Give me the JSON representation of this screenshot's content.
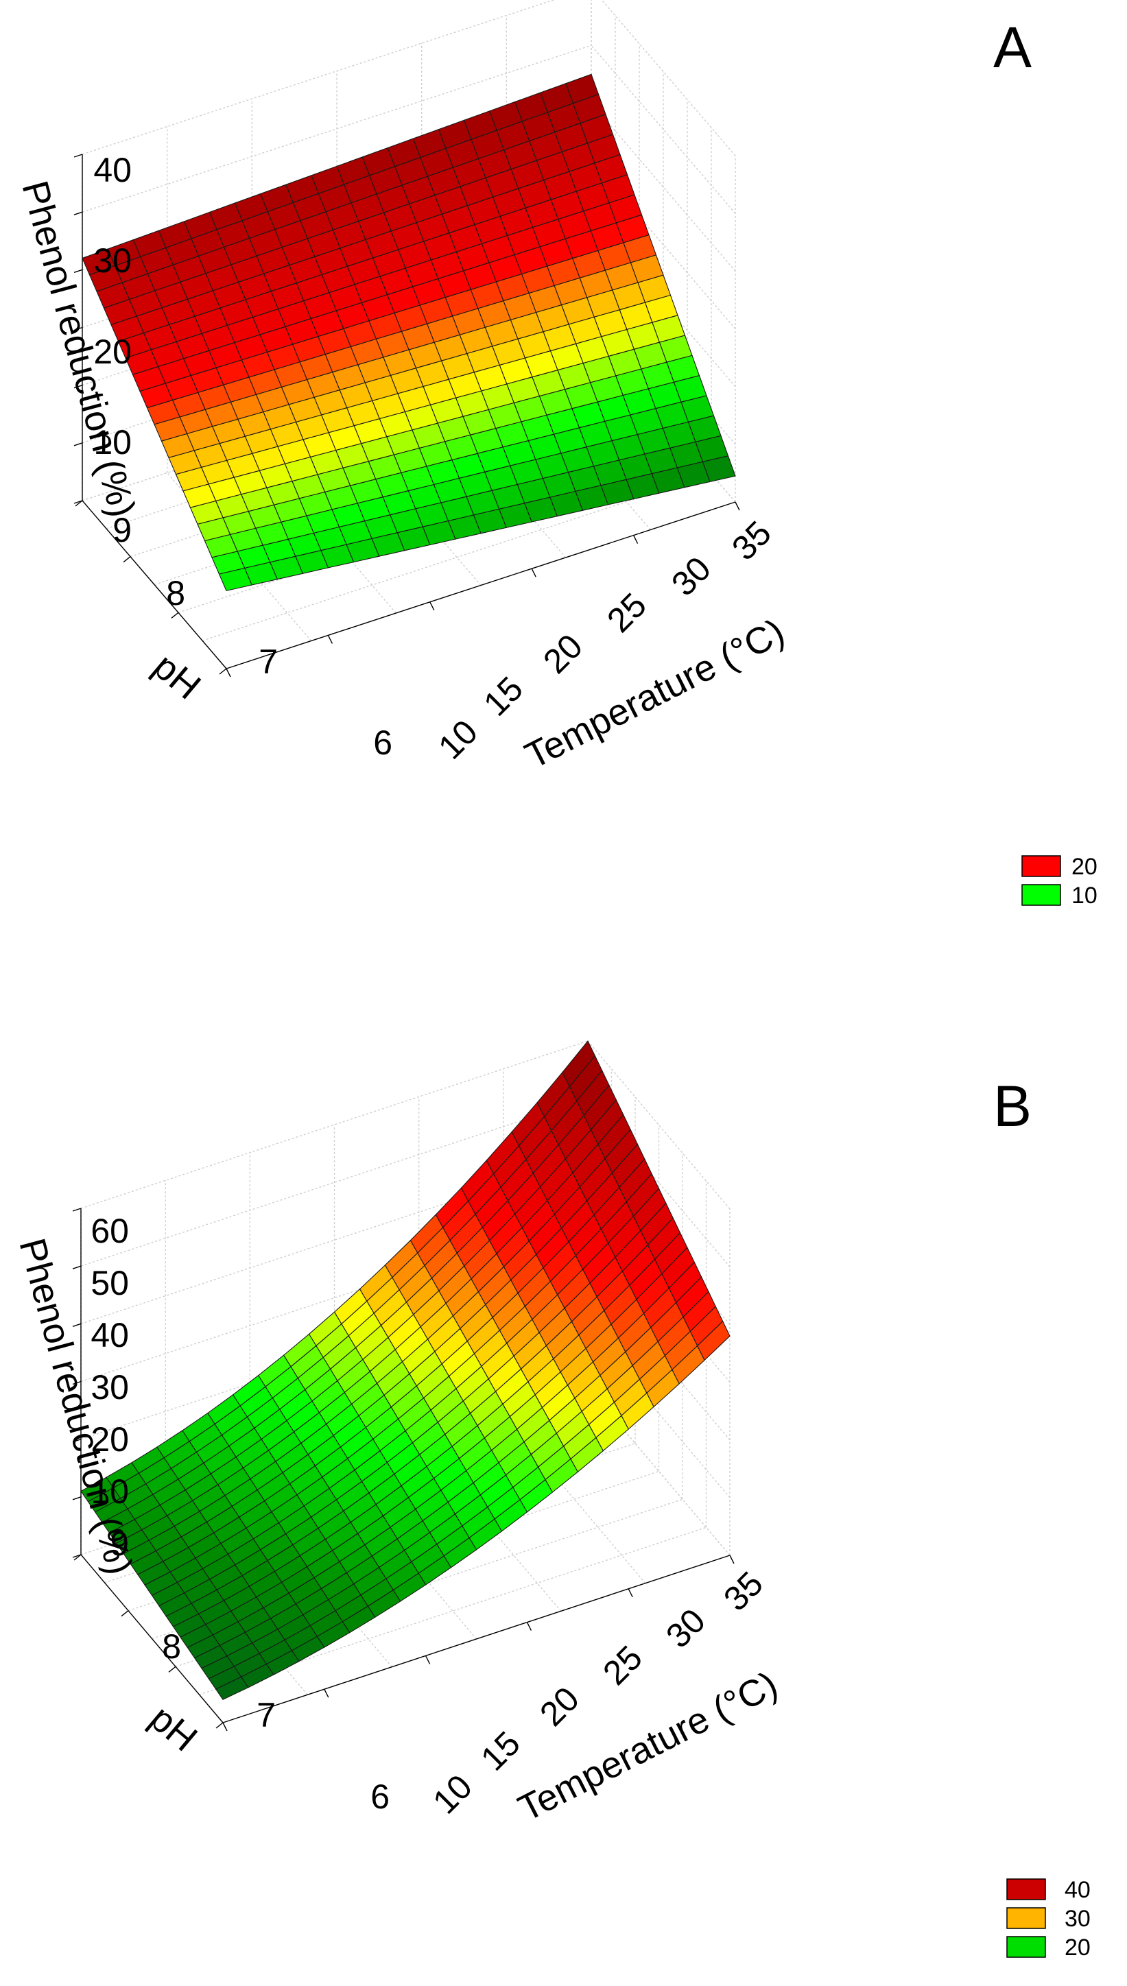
{
  "chart_data": [
    {
      "type": "surface3d",
      "panel_label": "A",
      "zlabel": "Phenol reduction (%)",
      "ylabel": "pH",
      "xlabel": "Temperature (°C)",
      "x_ticks": [
        10,
        15,
        20,
        25,
        30,
        35
      ],
      "y_ticks": [
        6,
        7,
        8,
        9
      ],
      "z_tick_labels": [
        "9",
        "10",
        "20",
        "30",
        "40"
      ],
      "xlim": [
        10,
        35
      ],
      "ylim": [
        6,
        9
      ],
      "zlim": [
        0,
        40
      ],
      "grid_points": 21,
      "surface_model": {
        "type": "bilinear",
        "corners": {
          "T10_pH6": 9,
          "T35_pH6": 3,
          "T10_pH9": 28,
          "T35_pH9": 30
        }
      },
      "legend": [
        {
          "label": "20",
          "color": "#ff0000"
        },
        {
          "label": "10",
          "color": "#00ff00"
        }
      ],
      "color_stops": [
        {
          "value": 0,
          "color": "#004d1a"
        },
        {
          "value": 5,
          "color": "#009a00"
        },
        {
          "value": 10,
          "color": "#00ff00"
        },
        {
          "value": 14,
          "color": "#ffff00"
        },
        {
          "value": 17,
          "color": "#ffa500"
        },
        {
          "value": 20,
          "color": "#ff0000"
        },
        {
          "value": 30,
          "color": "#990000"
        }
      ]
    },
    {
      "type": "surface3d",
      "panel_label": "B",
      "zlabel": "Phenol reduction (%)",
      "ylabel": "pH",
      "xlabel": "Temperature (°C)",
      "x_ticks": [
        10,
        15,
        20,
        25,
        30,
        35
      ],
      "y_ticks": [
        6,
        7,
        8,
        9
      ],
      "z_tick_labels": [
        "9",
        "10",
        "20",
        "30",
        "40",
        "50",
        "60"
      ],
      "xlim": [
        10,
        35
      ],
      "ylim": [
        6,
        9
      ],
      "zlim": [
        0,
        60
      ],
      "grid_points": 21,
      "surface_model": {
        "type": "quadratic_temperature",
        "corners": {
          "T10_pH6": 4,
          "T35_pH6": 38,
          "T10_pH9": 11,
          "T35_pH9": 60
        }
      },
      "legend": [
        {
          "label": "40",
          "color": "#cc0000"
        },
        {
          "label": "30",
          "color": "#ffb400"
        },
        {
          "label": "20",
          "color": "#00dd00"
        }
      ],
      "color_stops": [
        {
          "value": 0,
          "color": "#004d1a"
        },
        {
          "value": 10,
          "color": "#008a00"
        },
        {
          "value": 20,
          "color": "#00ff00"
        },
        {
          "value": 28,
          "color": "#ffff00"
        },
        {
          "value": 32,
          "color": "#ffa500"
        },
        {
          "value": 40,
          "color": "#ff0000"
        },
        {
          "value": 60,
          "color": "#8b0000"
        }
      ]
    }
  ]
}
